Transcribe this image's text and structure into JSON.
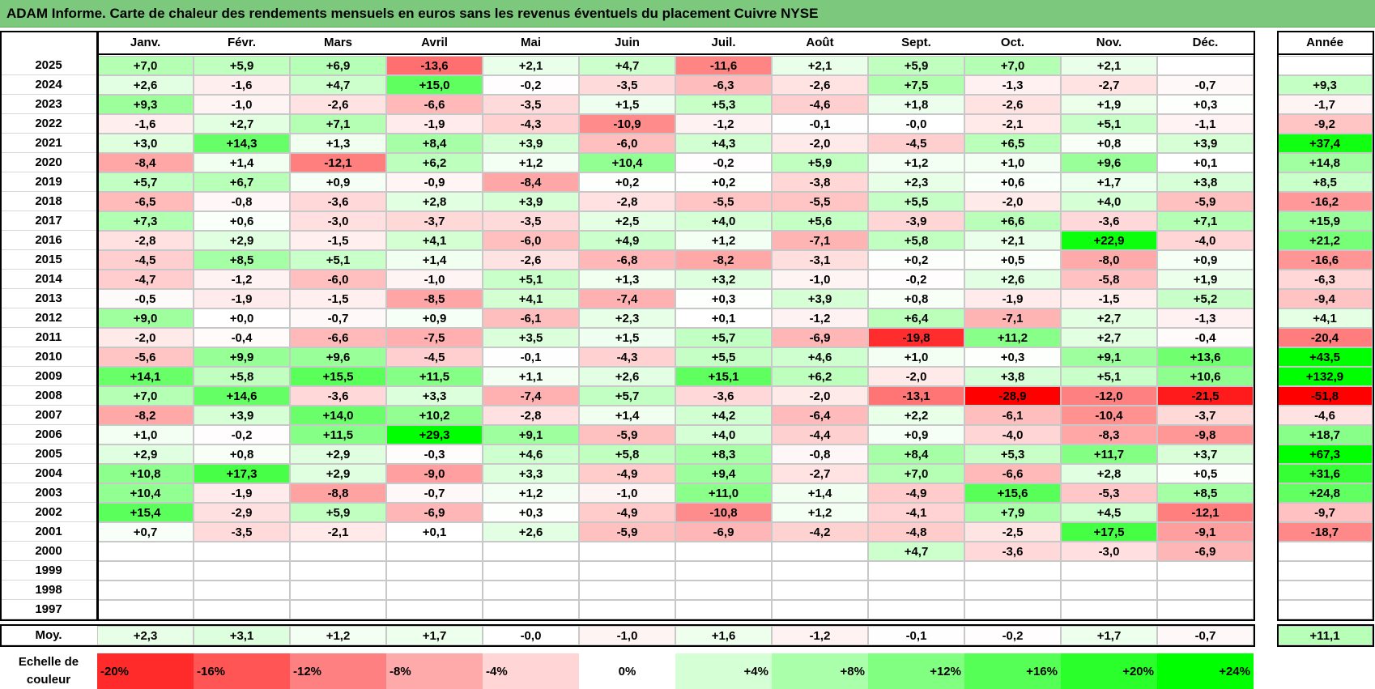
{
  "title": "ADAM Informe. Carte de chaleur des rendements mensuels en euros sans les revenus éventuels du placement Cuivre NYSE",
  "chart_data": {
    "type": "heatmap",
    "months": [
      "Janv.",
      "Févr.",
      "Mars",
      "Avril",
      "Mai",
      "Juin",
      "Juil.",
      "Août",
      "Sept.",
      "Oct.",
      "Nov.",
      "Déc."
    ],
    "year_header": "Année",
    "avg_label": "Moy.",
    "rows": [
      {
        "year": "2025",
        "values": [
          "+7,0",
          "+5,9",
          "+6,9",
          "-13,6",
          "+2,1",
          "+4,7",
          "-11,6",
          "+2,1",
          "+5,9",
          "+7,0",
          "+2,1",
          ""
        ],
        "annual": ""
      },
      {
        "year": "2024",
        "values": [
          "+2,6",
          "-1,6",
          "+4,7",
          "+15,0",
          "-0,2",
          "-3,5",
          "-6,3",
          "-2,6",
          "+7,5",
          "-1,3",
          "-2,7",
          "-0,7"
        ],
        "annual": "+9,3"
      },
      {
        "year": "2023",
        "values": [
          "+9,3",
          "-1,0",
          "-2,6",
          "-6,6",
          "-3,5",
          "+1,5",
          "+5,3",
          "-4,6",
          "+1,8",
          "-2,6",
          "+1,9",
          "+0,3"
        ],
        "annual": "-1,7"
      },
      {
        "year": "2022",
        "values": [
          "-1,6",
          "+2,7",
          "+7,1",
          "-1,9",
          "-4,3",
          "-10,9",
          "-1,2",
          "-0,1",
          "-0,0",
          "-2,1",
          "+5,1",
          "-1,1"
        ],
        "annual": "-9,2"
      },
      {
        "year": "2021",
        "values": [
          "+3,0",
          "+14,3",
          "+1,3",
          "+8,4",
          "+3,9",
          "-6,0",
          "+4,3",
          "-2,0",
          "-4,5",
          "+6,5",
          "+0,8",
          "+3,9"
        ],
        "annual": "+37,4"
      },
      {
        "year": "2020",
        "values": [
          "-8,4",
          "+1,4",
          "-12,1",
          "+6,2",
          "+1,2",
          "+10,4",
          "-0,2",
          "+5,9",
          "+1,2",
          "+1,0",
          "+9,6",
          "+0,1"
        ],
        "annual": "+14,8"
      },
      {
        "year": "2019",
        "values": [
          "+5,7",
          "+6,7",
          "+0,9",
          "-0,9",
          "-8,4",
          "+0,2",
          "+0,2",
          "-3,8",
          "+2,3",
          "+0,6",
          "+1,7",
          "+3,8"
        ],
        "annual": "+8,5"
      },
      {
        "year": "2018",
        "values": [
          "-6,5",
          "-0,8",
          "-3,6",
          "+2,8",
          "+3,9",
          "-2,8",
          "-5,5",
          "-5,5",
          "+5,5",
          "-2,0",
          "+4,0",
          "-5,9"
        ],
        "annual": "-16,2"
      },
      {
        "year": "2017",
        "values": [
          "+7,3",
          "+0,6",
          "-3,0",
          "-3,7",
          "-3,5",
          "+2,5",
          "+4,0",
          "+5,6",
          "-3,9",
          "+6,6",
          "-3,6",
          "+7,1"
        ],
        "annual": "+15,9"
      },
      {
        "year": "2016",
        "values": [
          "-2,8",
          "+2,9",
          "-1,5",
          "+4,1",
          "-6,0",
          "+4,9",
          "+1,2",
          "-7,1",
          "+5,8",
          "+2,1",
          "+22,9",
          "-4,0"
        ],
        "annual": "+21,2"
      },
      {
        "year": "2015",
        "values": [
          "-4,5",
          "+8,5",
          "+5,1",
          "+1,4",
          "-2,6",
          "-6,8",
          "-8,2",
          "-3,1",
          "+0,2",
          "+0,5",
          "-8,0",
          "+0,9"
        ],
        "annual": "-16,6"
      },
      {
        "year": "2014",
        "values": [
          "-4,7",
          "-1,2",
          "-6,0",
          "-1,0",
          "+5,1",
          "+1,3",
          "+3,2",
          "-1,0",
          "-0,2",
          "+2,6",
          "-5,8",
          "+1,9"
        ],
        "annual": "-6,3"
      },
      {
        "year": "2013",
        "values": [
          "-0,5",
          "-1,9",
          "-1,5",
          "-8,5",
          "+4,1",
          "-7,4",
          "+0,3",
          "+3,9",
          "+0,8",
          "-1,9",
          "-1,5",
          "+5,2"
        ],
        "annual": "-9,4"
      },
      {
        "year": "2012",
        "values": [
          "+9,0",
          "+0,0",
          "-0,7",
          "+0,9",
          "-6,1",
          "+2,3",
          "+0,1",
          "-1,2",
          "+6,4",
          "-7,1",
          "+2,7",
          "-1,3"
        ],
        "annual": "+4,1"
      },
      {
        "year": "2011",
        "values": [
          "-2,0",
          "-0,4",
          "-6,6",
          "-7,5",
          "+3,5",
          "+1,5",
          "+5,7",
          "-6,9",
          "-19,8",
          "+11,2",
          "+2,7",
          "-0,4"
        ],
        "annual": "-20,4"
      },
      {
        "year": "2010",
        "values": [
          "-5,6",
          "+9,9",
          "+9,6",
          "-4,5",
          "-0,1",
          "-4,3",
          "+5,5",
          "+4,6",
          "+1,0",
          "+0,3",
          "+9,1",
          "+13,6"
        ],
        "annual": "+43,5"
      },
      {
        "year": "2009",
        "values": [
          "+14,1",
          "+5,8",
          "+15,5",
          "+11,5",
          "+1,1",
          "+2,6",
          "+15,1",
          "+6,2",
          "-2,0",
          "+3,8",
          "+5,1",
          "+10,6"
        ],
        "annual": "+132,9"
      },
      {
        "year": "2008",
        "values": [
          "+7,0",
          "+14,6",
          "-3,6",
          "+3,3",
          "-7,4",
          "+5,7",
          "-3,6",
          "-2,0",
          "-13,1",
          "-28,9",
          "-12,0",
          "-21,5"
        ],
        "annual": "-51,8"
      },
      {
        "year": "2007",
        "values": [
          "-8,2",
          "+3,9",
          "+14,0",
          "+10,2",
          "-2,8",
          "+1,4",
          "+4,2",
          "-6,4",
          "+2,2",
          "-6,1",
          "-10,4",
          "-3,7"
        ],
        "annual": "-4,6"
      },
      {
        "year": "2006",
        "values": [
          "+1,0",
          "-0,2",
          "+11,5",
          "+29,3",
          "+9,1",
          "-5,9",
          "+4,0",
          "-4,4",
          "+0,9",
          "-4,0",
          "-8,3",
          "-9,8"
        ],
        "annual": "+18,7"
      },
      {
        "year": "2005",
        "values": [
          "+2,9",
          "+0,8",
          "+2,9",
          "-0,3",
          "+4,6",
          "+5,8",
          "+8,3",
          "-0,8",
          "+8,4",
          "+5,3",
          "+11,7",
          "+3,7"
        ],
        "annual": "+67,3"
      },
      {
        "year": "2004",
        "values": [
          "+10,8",
          "+17,3",
          "+2,9",
          "-9,0",
          "+3,3",
          "-4,9",
          "+9,4",
          "-2,7",
          "+7,0",
          "-6,6",
          "+2,8",
          "+0,5"
        ],
        "annual": "+31,6"
      },
      {
        "year": "2003",
        "values": [
          "+10,4",
          "-1,9",
          "-8,8",
          "-0,7",
          "+1,2",
          "-1,0",
          "+11,0",
          "+1,4",
          "-4,9",
          "+15,6",
          "-5,3",
          "+8,5"
        ],
        "annual": "+24,8"
      },
      {
        "year": "2002",
        "values": [
          "+15,4",
          "-2,9",
          "+5,9",
          "-6,9",
          "+0,3",
          "-4,9",
          "-10,8",
          "+1,2",
          "-4,1",
          "+7,9",
          "+4,5",
          "-12,1"
        ],
        "annual": "-9,7"
      },
      {
        "year": "2001",
        "values": [
          "+0,7",
          "-3,5",
          "-2,1",
          "+0,1",
          "+2,6",
          "-5,9",
          "-6,9",
          "-4,2",
          "-4,8",
          "-2,5",
          "+17,5",
          "-9,1"
        ],
        "annual": "-18,7"
      },
      {
        "year": "2000",
        "values": [
          "",
          "",
          "",
          "",
          "",
          "",
          "",
          "",
          "+4,7",
          "-3,6",
          "-3,0",
          "-6,9"
        ],
        "annual": ""
      },
      {
        "year": "1999",
        "values": [
          "",
          "",
          "",
          "",
          "",
          "",
          "",
          "",
          "",
          "",
          "",
          ""
        ],
        "annual": ""
      },
      {
        "year": "1998",
        "values": [
          "",
          "",
          "",
          "",
          "",
          "",
          "",
          "",
          "",
          "",
          "",
          ""
        ],
        "annual": ""
      },
      {
        "year": "1997",
        "values": [
          "",
          "",
          "",
          "",
          "",
          "",
          "",
          "",
          "",
          "",
          "",
          ""
        ],
        "annual": ""
      }
    ],
    "averages": [
      "+2,3",
      "+3,1",
      "+1,2",
      "+1,7",
      "-0,0",
      "-1,0",
      "+1,6",
      "-1,2",
      "-0,1",
      "-0,2",
      "+1,7",
      "-0,7"
    ],
    "annual_average": "+11,1",
    "legend": {
      "label_line1": "Echelle de",
      "label_line2": "couleur",
      "steps": [
        "-20%",
        "-16%",
        "-12%",
        "-8%",
        "-4%",
        "0%",
        "+4%",
        "+8%",
        "+12%",
        "+16%",
        "+20%",
        "+24%"
      ],
      "step_values": [
        -20,
        -16,
        -12,
        -8,
        -4,
        0,
        4,
        8,
        12,
        16,
        20,
        24
      ]
    },
    "colors": {
      "negative_max": "#ff0000",
      "neutral": "#ffffff",
      "positive_max": "#00ff00",
      "title_bar": "#7cc87c"
    }
  }
}
